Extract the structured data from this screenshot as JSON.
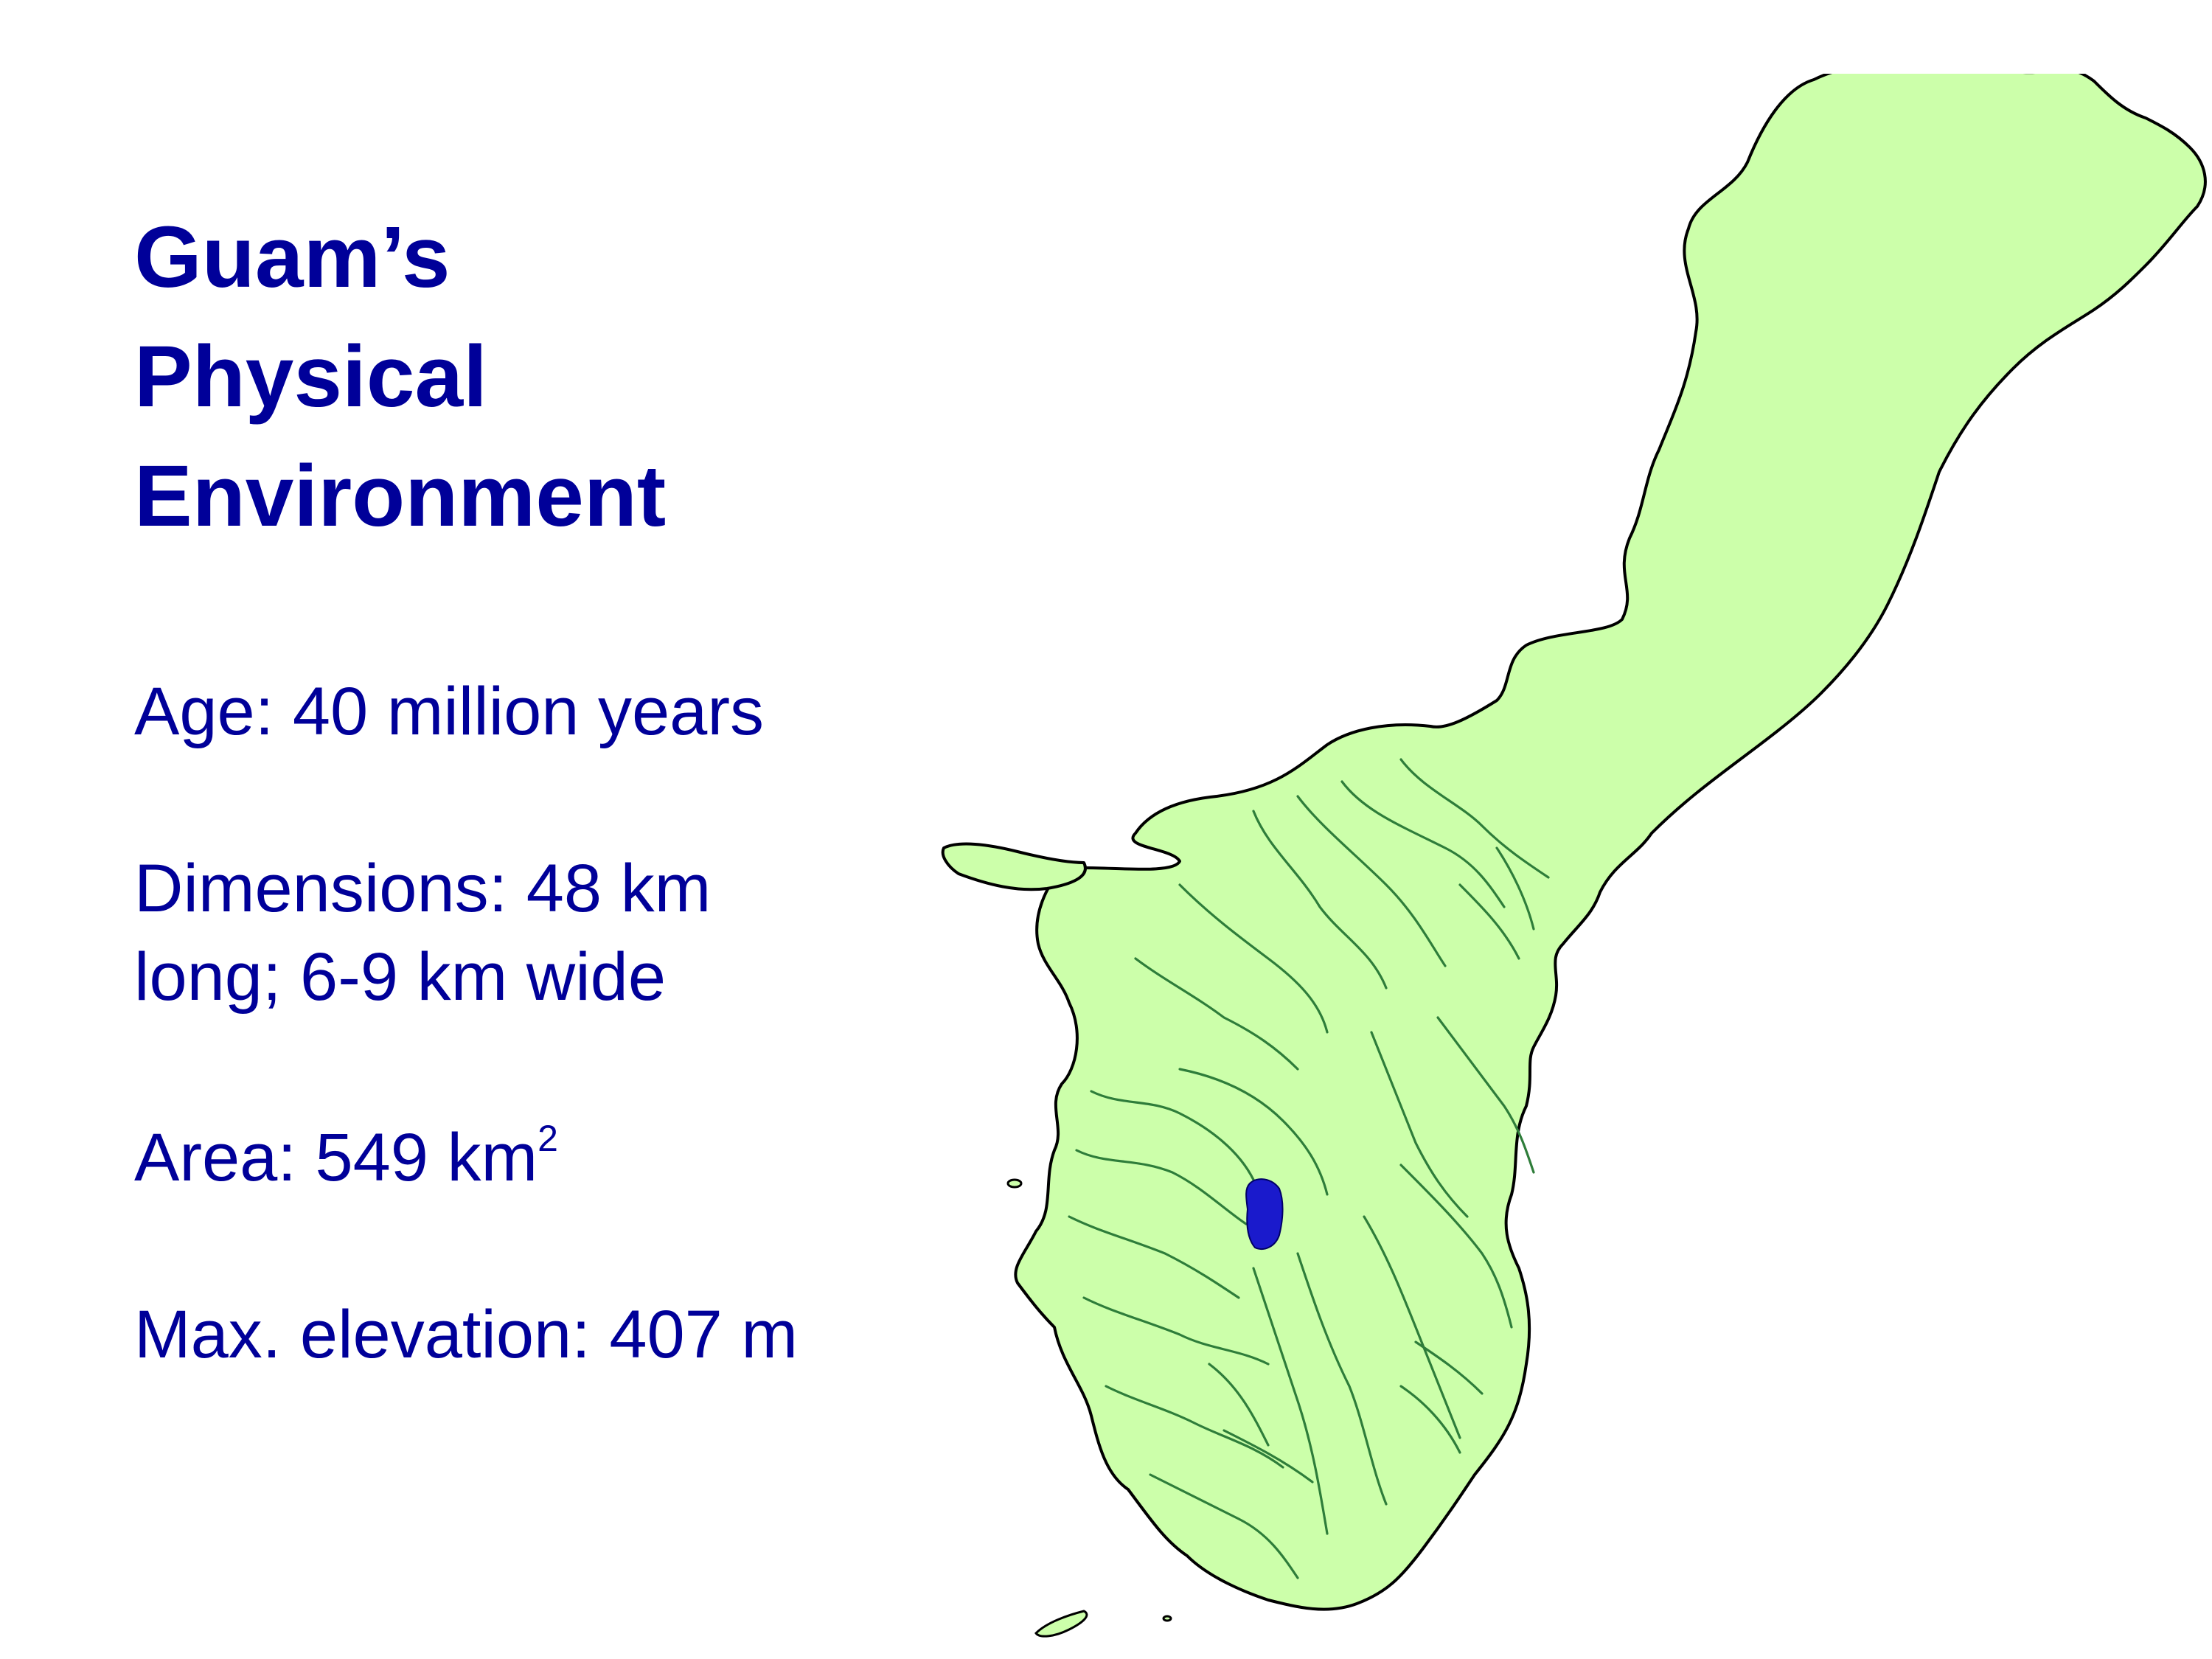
{
  "slide": {
    "title_lines": [
      "Guam’s",
      "Physical",
      "Environment"
    ],
    "facts": {
      "age": "Age: 40 million years",
      "dimensions_line1": "Dimensions: 48 km",
      "dimensions_line2": "long; 6-9 km wide",
      "area_prefix": "Area: 549 km",
      "area_superscript": "2",
      "elevation": "Max. elevation: 407 m"
    }
  },
  "map": {
    "land_color": "#ccffaa",
    "coast_color": "#000000",
    "river_color": "#2e7d3a",
    "reservoir_color": "#1a1acc"
  }
}
